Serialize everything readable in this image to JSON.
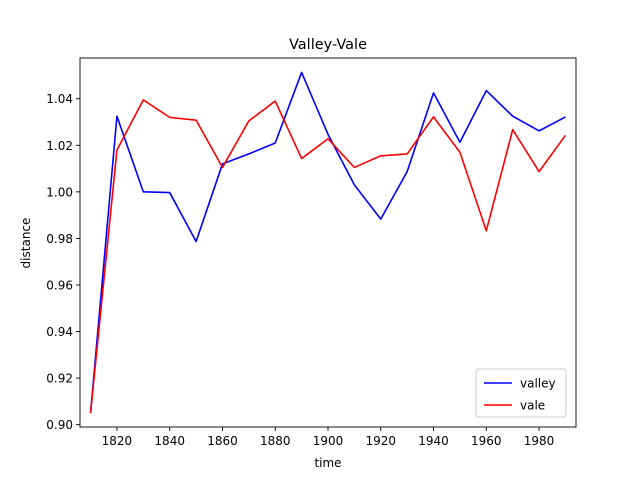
{
  "chart_data": {
    "type": "line",
    "title": "Valley-Vale",
    "xlabel": "time",
    "ylabel": "distance",
    "x": [
      1810,
      1820,
      1830,
      1840,
      1850,
      1860,
      1870,
      1880,
      1890,
      1900,
      1910,
      1920,
      1930,
      1940,
      1950,
      1960,
      1970,
      1980,
      1990
    ],
    "xlim": [
      1806,
      1994
    ],
    "ylim": [
      0.899,
      1.0575
    ],
    "xticks": [
      1820,
      1840,
      1860,
      1880,
      1900,
      1920,
      1940,
      1960,
      1980
    ],
    "yticks": [
      0.9,
      0.92,
      0.94,
      0.96,
      0.98,
      1.0,
      1.02,
      1.04
    ],
    "ytick_labels": [
      "0.90",
      "0.92",
      "0.94",
      "0.96",
      "0.98",
      "1.00",
      "1.02",
      "1.04"
    ],
    "grid": false,
    "legend_position": "lower right",
    "series": [
      {
        "name": "valley",
        "color": "#0000ff",
        "values": [
          0.905,
          1.0325,
          1.0,
          0.9997,
          0.9787,
          1.012,
          1.0163,
          1.021,
          1.0513,
          1.0247,
          1.003,
          0.9883,
          1.0087,
          1.0425,
          1.0213,
          1.0435,
          1.0325,
          1.0262,
          1.0322
        ]
      },
      {
        "name": "vale",
        "color": "#ff0000",
        "values": [
          0.905,
          1.018,
          1.0395,
          1.032,
          1.0308,
          1.0105,
          1.0305,
          1.039,
          1.0143,
          1.0228,
          1.0105,
          1.0155,
          1.0163,
          1.0322,
          1.017,
          0.9833,
          1.0267,
          1.0087,
          1.0243
        ]
      }
    ]
  }
}
